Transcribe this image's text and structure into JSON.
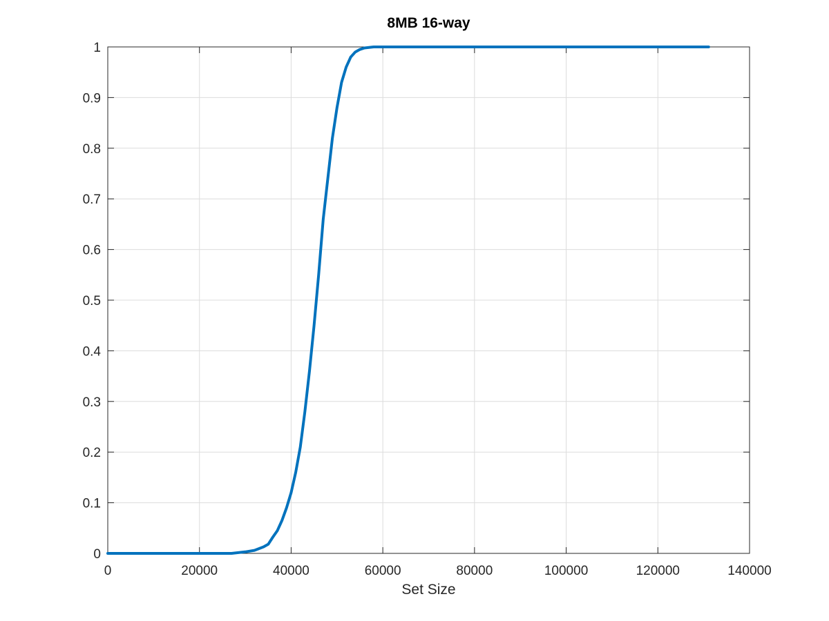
{
  "chart_data": {
    "type": "line",
    "title": "8MB 16-way",
    "xlabel": "Set Size",
    "ylabel": "",
    "xlim": [
      0,
      140000
    ],
    "ylim": [
      0,
      1
    ],
    "grid": true,
    "legend": "none",
    "x_ticks": [
      "0",
      "20000",
      "40000",
      "60000",
      "80000",
      "100000",
      "120000",
      "140000"
    ],
    "y_ticks": [
      "0",
      "0.1",
      "0.2",
      "0.3",
      "0.4",
      "0.5",
      "0.6",
      "0.7",
      "0.8",
      "0.9",
      "1"
    ],
    "series": [
      {
        "color": "#0072BD",
        "x": [
          0,
          10000,
          20000,
          27000,
          30000,
          32000,
          34000,
          35000,
          36000,
          37000,
          38000,
          39000,
          40000,
          41000,
          42000,
          43000,
          44000,
          45000,
          46000,
          47000,
          48000,
          49000,
          50000,
          51000,
          52000,
          53000,
          54000,
          55000,
          56000,
          57000,
          58000,
          60000,
          80000,
          100000,
          120000,
          131072
        ],
        "y": [
          0,
          0,
          0,
          0,
          0.003,
          0.006,
          0.013,
          0.018,
          0.032,
          0.045,
          0.065,
          0.09,
          0.12,
          0.16,
          0.21,
          0.28,
          0.36,
          0.45,
          0.55,
          0.66,
          0.74,
          0.82,
          0.88,
          0.93,
          0.96,
          0.98,
          0.99,
          0.995,
          0.998,
          0.999,
          1,
          1,
          1,
          1,
          1,
          1
        ]
      }
    ]
  }
}
